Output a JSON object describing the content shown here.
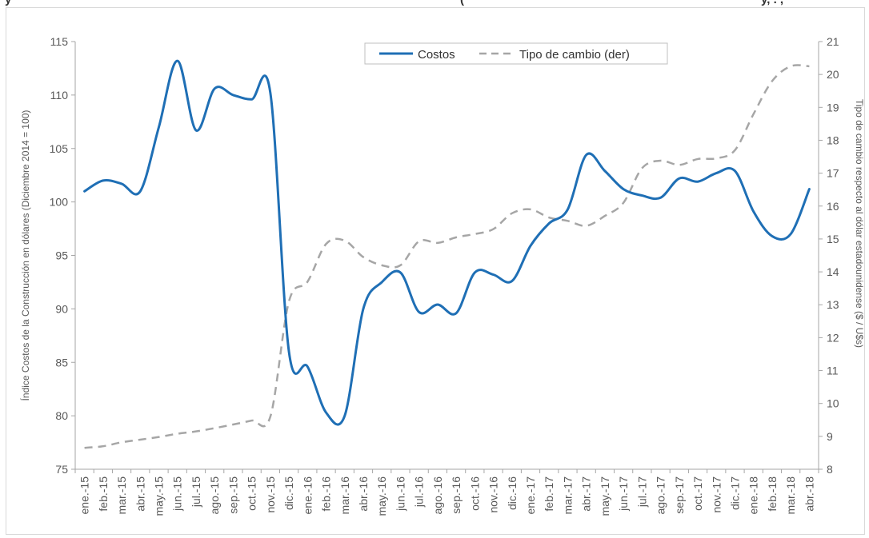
{
  "title": {
    "visible_left": "y",
    "visible_right": "(",
    "visible_tail": "y, . ,"
  },
  "chart_data": {
    "type": "line",
    "categories": [
      "ene.-15",
      "feb.-15",
      "mar.-15",
      "abr.-15",
      "may.-15",
      "jun.-15",
      "jul.-15",
      "ago.-15",
      "sep.-15",
      "oct.-15",
      "nov.-15",
      "dic.-15",
      "ene.-16",
      "feb.-16",
      "mar.-16",
      "abr.-16",
      "may.-16",
      "jun.-16",
      "jul.-16",
      "ago.-16",
      "sep.-16",
      "oct.-16",
      "nov.-16",
      "dic.-16",
      "ene.-17",
      "feb.-17",
      "mar.-17",
      "abr.-17",
      "may.-17",
      "jun.-17",
      "jul.-17",
      "ago.-17",
      "sep.-17",
      "oct.-17",
      "nov.-17",
      "dic.-17",
      "ene.-18",
      "feb.-18",
      "mar.-18",
      "abr.-18"
    ],
    "series": [
      {
        "name": "Costos",
        "axis": "left",
        "color": "#1f6fb5",
        "style": "solid",
        "values": [
          101.0,
          102.0,
          101.7,
          101.0,
          107.0,
          113.2,
          106.7,
          110.6,
          110.0,
          109.6,
          110.2,
          86.0,
          84.6,
          80.3,
          80.0,
          90.0,
          92.5,
          93.4,
          89.7,
          90.4,
          89.6,
          93.4,
          93.2,
          92.6,
          95.9,
          98.0,
          99.3,
          104.4,
          102.9,
          101.2,
          100.6,
          100.4,
          102.2,
          101.9,
          102.7,
          102.9,
          99.1,
          96.8,
          97.0,
          101.2
        ]
      },
      {
        "name": "Tipo de cambio (der)",
        "axis": "right",
        "color": "#a6a6a6",
        "style": "dashed",
        "values": [
          8.65,
          8.7,
          8.82,
          8.9,
          8.98,
          9.08,
          9.15,
          9.25,
          9.36,
          9.48,
          9.6,
          13.1,
          13.7,
          14.85,
          14.95,
          14.45,
          14.2,
          14.2,
          14.93,
          14.88,
          15.05,
          15.15,
          15.3,
          15.78,
          15.9,
          15.65,
          15.55,
          15.4,
          15.7,
          16.1,
          17.15,
          17.38,
          17.25,
          17.43,
          17.45,
          17.7,
          18.8,
          19.8,
          20.25,
          20.25
        ]
      }
    ],
    "ylabel": "Índice Costos de la Construcción en dólares (Diciembre 2014 = 100)",
    "y2label": "Tipo de cambio respecto al dólar estadounidense ($ / U$s)",
    "ylim": [
      75,
      115
    ],
    "yticks": [
      "75",
      "80",
      "85",
      "90",
      "95",
      "100",
      "105",
      "110",
      "115"
    ],
    "y2lim": [
      8,
      21
    ],
    "y2ticks": [
      "8",
      "9",
      "10",
      "11",
      "12",
      "13",
      "14",
      "15",
      "16",
      "17",
      "18",
      "19",
      "20",
      "21"
    ],
    "grid": false,
    "legend": "top-center"
  }
}
